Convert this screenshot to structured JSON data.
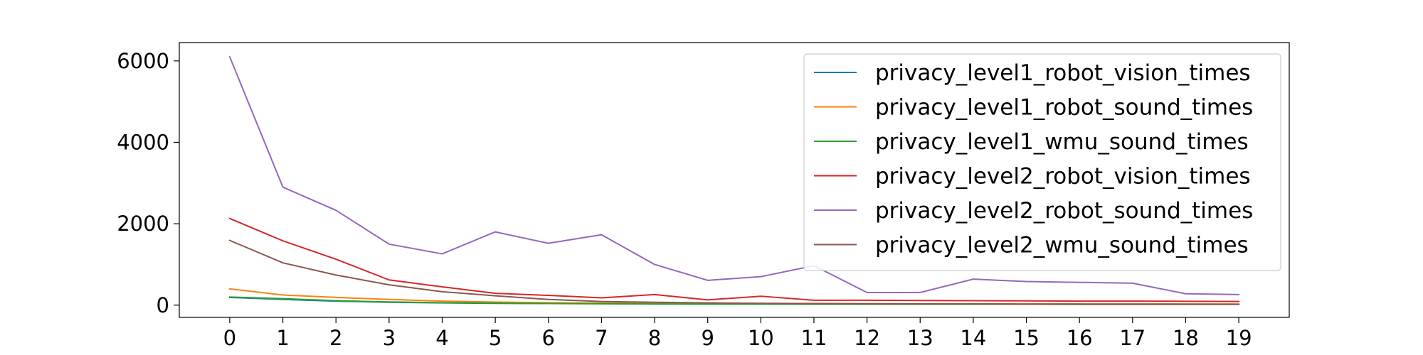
{
  "chart_data": {
    "type": "line",
    "title": "",
    "xlabel": "",
    "ylabel": "",
    "x": [
      0,
      1,
      2,
      3,
      4,
      5,
      6,
      7,
      8,
      9,
      10,
      11,
      12,
      13,
      14,
      15,
      16,
      17,
      18,
      19
    ],
    "xlim": [
      -0.95,
      19.95
    ],
    "ylim": [
      -300,
      6450
    ],
    "yticks": [
      0,
      2000,
      4000,
      6000
    ],
    "grid": false,
    "legend": "top-right",
    "series": [
      {
        "name": "privacy_level1_robot_vision_times",
        "color": "#1f77b4",
        "values": [
          190,
          140,
          100,
          70,
          55,
          45,
          40,
          35,
          30,
          28,
          27,
          25,
          24,
          23,
          23,
          22,
          21,
          21,
          20,
          20
        ]
      },
      {
        "name": "privacy_level1_robot_sound_times",
        "color": "#ff7f0e",
        "values": [
          400,
          250,
          190,
          140,
          100,
          75,
          60,
          50,
          45,
          40,
          38,
          35,
          33,
          32,
          31,
          30,
          29,
          29,
          28,
          28
        ]
      },
      {
        "name": "privacy_level1_wmu_sound_times",
        "color": "#2ca02c",
        "values": [
          200,
          160,
          110,
          80,
          60,
          50,
          40,
          35,
          30,
          28,
          26,
          25,
          24,
          23,
          22,
          22,
          21,
          21,
          20,
          20
        ]
      },
      {
        "name": "privacy_level2_robot_vision_times",
        "color": "#d62728",
        "values": [
          2130,
          1580,
          1130,
          620,
          450,
          290,
          240,
          180,
          260,
          130,
          220,
          120,
          120,
          115,
          110,
          105,
          100,
          100,
          95,
          90
        ]
      },
      {
        "name": "privacy_level2_robot_sound_times",
        "color": "#9467bd",
        "values": [
          6100,
          2900,
          2330,
          1500,
          1260,
          1800,
          1520,
          1730,
          1000,
          610,
          700,
          970,
          310,
          310,
          640,
          580,
          560,
          540,
          280,
          260
        ]
      },
      {
        "name": "privacy_level2_wmu_sound_times",
        "color": "#8c564b",
        "values": [
          1590,
          1040,
          740,
          500,
          330,
          230,
          140,
          90,
          70,
          55,
          45,
          40,
          35,
          32,
          30,
          28,
          26,
          25,
          24,
          23
        ]
      }
    ]
  }
}
